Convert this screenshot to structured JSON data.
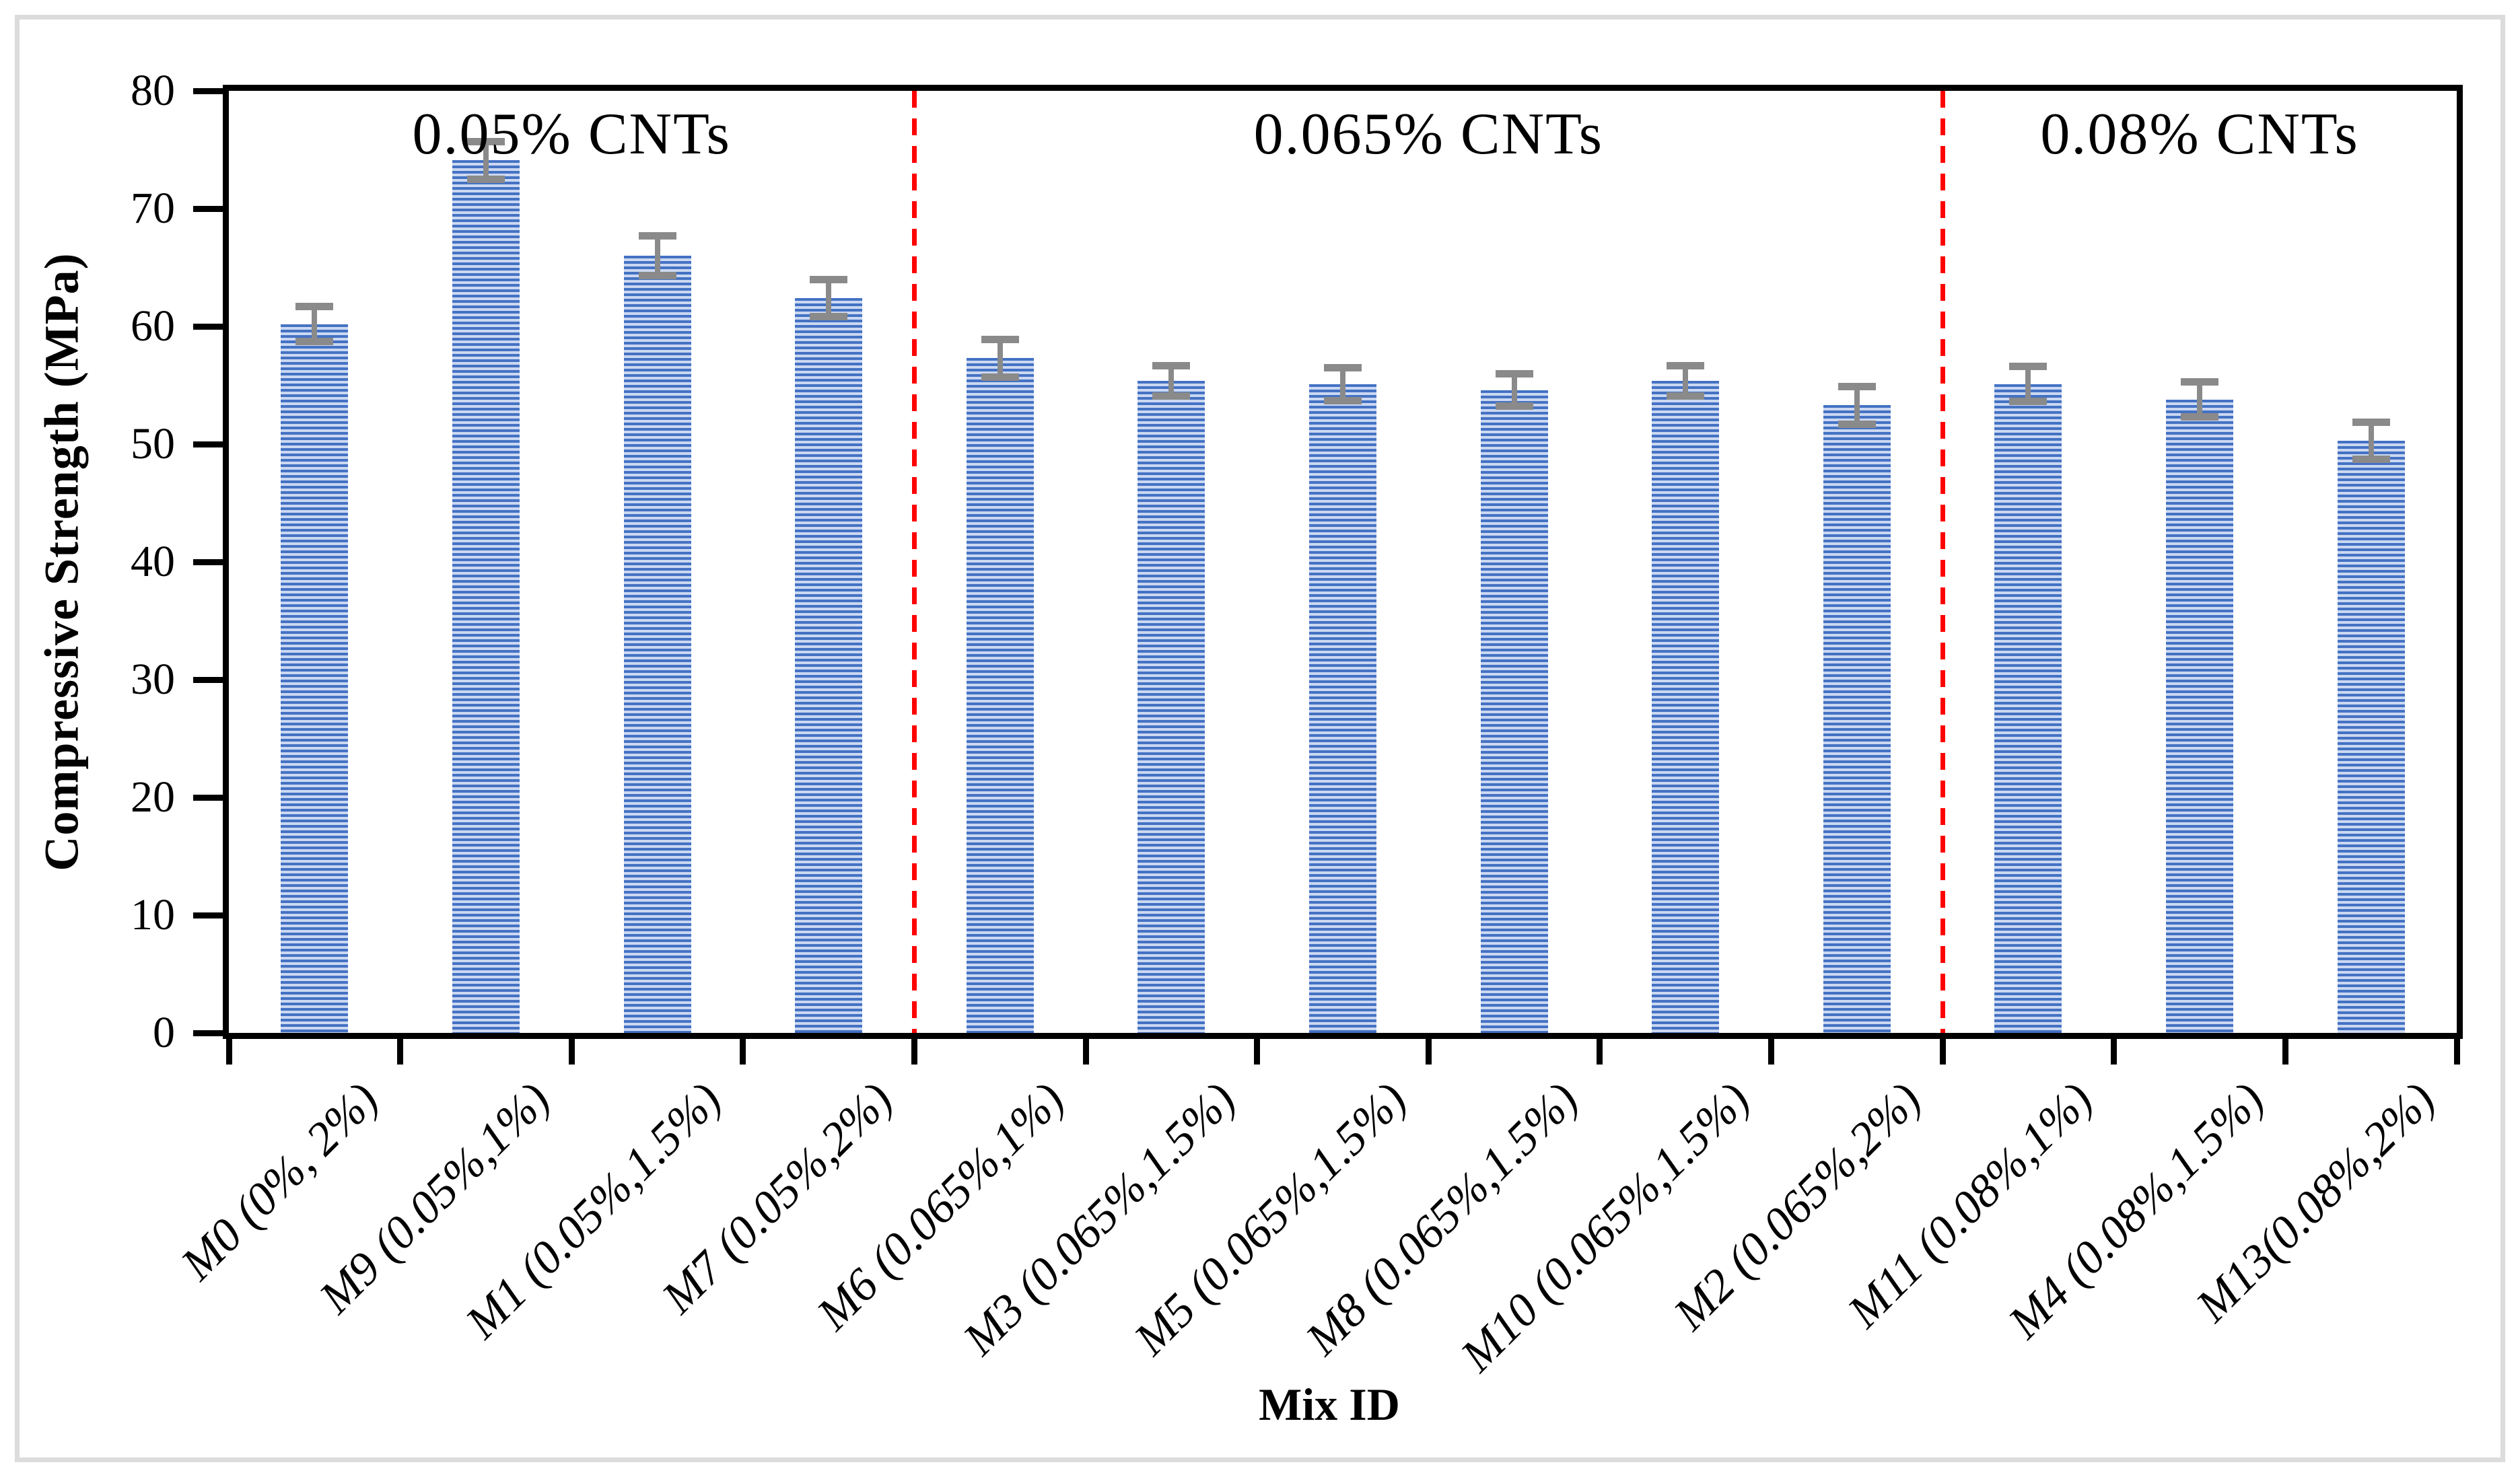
{
  "figure": {
    "background": "#ffffff",
    "border_color": "#dcdcdc"
  },
  "colors": {
    "bar_stripe_dark": "#4472c4",
    "bar_stripe_light": "#cbd8f1",
    "error_bar_gray": "#8a8a8a",
    "divider_red": "#ff0000",
    "axis_black": "#000000"
  },
  "chart_data": {
    "type": "bar",
    "title": "",
    "xlabel": "Mix ID",
    "ylabel": "Compressive Strength (MPa)",
    "ylim": [
      0,
      80
    ],
    "yticks": [
      0,
      10,
      20,
      30,
      40,
      50,
      60,
      70,
      80
    ],
    "grid": false,
    "legend": "none",
    "categories": [
      "M0 (0%, 2%)",
      "M9 (0.05%,1%)",
      "M1 (0.05%,1.5%)",
      "M7 (0.05%,2%)",
      "M6 (0.065%,1%)",
      "M3 (0.065%,1.5%)",
      "M5 (0.065%,1.5%)",
      "M8 (0.065%,1.5%)",
      "M10 (0.065%,1.5%)",
      "M2 (0.065%,2%)",
      "M11 (0.08%,1%)",
      "M4 (0.08%,1.5%)",
      "M13(0.08%,2%)"
    ],
    "values": [
      60.2,
      74.1,
      66.0,
      62.4,
      57.3,
      55.4,
      55.1,
      54.6,
      55.4,
      53.3,
      55.1,
      53.8,
      50.3
    ],
    "error_bars": [
      1.8,
      1.9,
      2.0,
      1.9,
      1.9,
      1.6,
      1.7,
      1.7,
      1.6,
      1.9,
      1.8,
      1.8,
      1.9
    ],
    "sections": [
      {
        "label": "0.05% CNTs",
        "start": 0,
        "end": 3
      },
      {
        "label": "0.065% CNTs",
        "start": 4,
        "end": 9
      },
      {
        "label": "0.08% CNTs",
        "start": 10,
        "end": 12
      }
    ],
    "divider_boundaries": [
      4,
      10
    ],
    "bar_pattern": "horizontal-stripes",
    "error_bar_style": "caps-top-and-bottom"
  }
}
